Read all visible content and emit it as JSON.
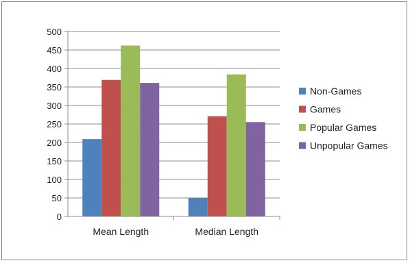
{
  "chart_data": {
    "type": "bar",
    "title": "",
    "xlabel": "",
    "ylabel": "",
    "categories": [
      "Mean Length",
      "Median Length"
    ],
    "series": [
      {
        "name": "Non-Games",
        "values": [
          209,
          50
        ],
        "color": "#4f81bd"
      },
      {
        "name": "Games",
        "values": [
          369,
          271
        ],
        "color": "#c0504d"
      },
      {
        "name": "Popular Games",
        "values": [
          462,
          384
        ],
        "color": "#9bbb59"
      },
      {
        "name": "Unpopular Games",
        "values": [
          361,
          255
        ],
        "color": "#8064a2"
      }
    ],
    "ylim": [
      0,
      500
    ],
    "yticks": [
      0,
      50,
      100,
      150,
      200,
      250,
      300,
      350,
      400,
      450,
      500
    ],
    "grid": true,
    "legend_position": "right"
  }
}
